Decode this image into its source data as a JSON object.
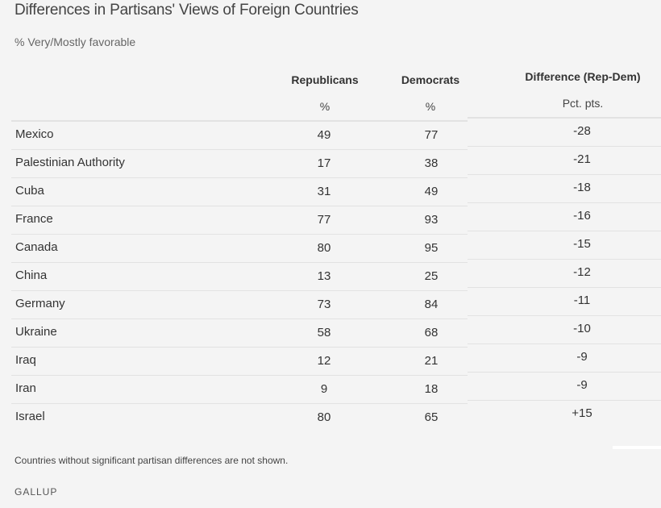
{
  "title": "Differences in Partisans' Views of Foreign Countries",
  "subtitle": "% Very/Mostly favorable",
  "columns": {
    "rep": {
      "label": "Republicans",
      "unit": "%"
    },
    "dem": {
      "label": "Democrats",
      "unit": "%"
    },
    "diff": {
      "label": "Difference (Rep-Dem)",
      "unit": "Pct. pts."
    }
  },
  "rows": [
    {
      "country": "Mexico",
      "rep": "49",
      "dem": "77",
      "diff": "-28"
    },
    {
      "country": "Palestinian Authority",
      "rep": "17",
      "dem": "38",
      "diff": "-21"
    },
    {
      "country": "Cuba",
      "rep": "31",
      "dem": "49",
      "diff": "-18"
    },
    {
      "country": "France",
      "rep": "77",
      "dem": "93",
      "diff": "-16"
    },
    {
      "country": "Canada",
      "rep": "80",
      "dem": "95",
      "diff": "-15"
    },
    {
      "country": "China",
      "rep": "13",
      "dem": "25",
      "diff": "-12"
    },
    {
      "country": "Germany",
      "rep": "73",
      "dem": "84",
      "diff": "-11"
    },
    {
      "country": "Ukraine",
      "rep": "58",
      "dem": "68",
      "diff": "-10"
    },
    {
      "country": "Iraq",
      "rep": "12",
      "dem": "21",
      "diff": "-9"
    },
    {
      "country": "Iran",
      "rep": "9",
      "dem": "18",
      "diff": "-9"
    },
    {
      "country": "Israel",
      "rep": "80",
      "dem": "65",
      "diff": "+15"
    }
  ],
  "footnote": "Countries without significant partisan differences are not shown.",
  "source": "GALLUP",
  "chart_data": {
    "type": "table",
    "title": "Differences in Partisans' Views of Foreign Countries",
    "subtitle": "% Very/Mostly favorable",
    "columns": [
      "Republicans",
      "Democrats",
      "Difference (Rep-Dem)"
    ],
    "categories": [
      "Mexico",
      "Palestinian Authority",
      "Cuba",
      "France",
      "Canada",
      "China",
      "Germany",
      "Ukraine",
      "Iraq",
      "Iran",
      "Israel"
    ],
    "series": [
      {
        "name": "Republicans",
        "values": [
          49,
          17,
          31,
          77,
          80,
          13,
          73,
          58,
          12,
          9,
          80
        ]
      },
      {
        "name": "Democrats",
        "values": [
          77,
          38,
          49,
          93,
          95,
          25,
          84,
          68,
          21,
          18,
          65
        ]
      },
      {
        "name": "Difference (Rep-Dem)",
        "values": [
          -28,
          -21,
          -18,
          -16,
          -15,
          -12,
          -11,
          -10,
          -9,
          -9,
          15
        ]
      }
    ]
  }
}
